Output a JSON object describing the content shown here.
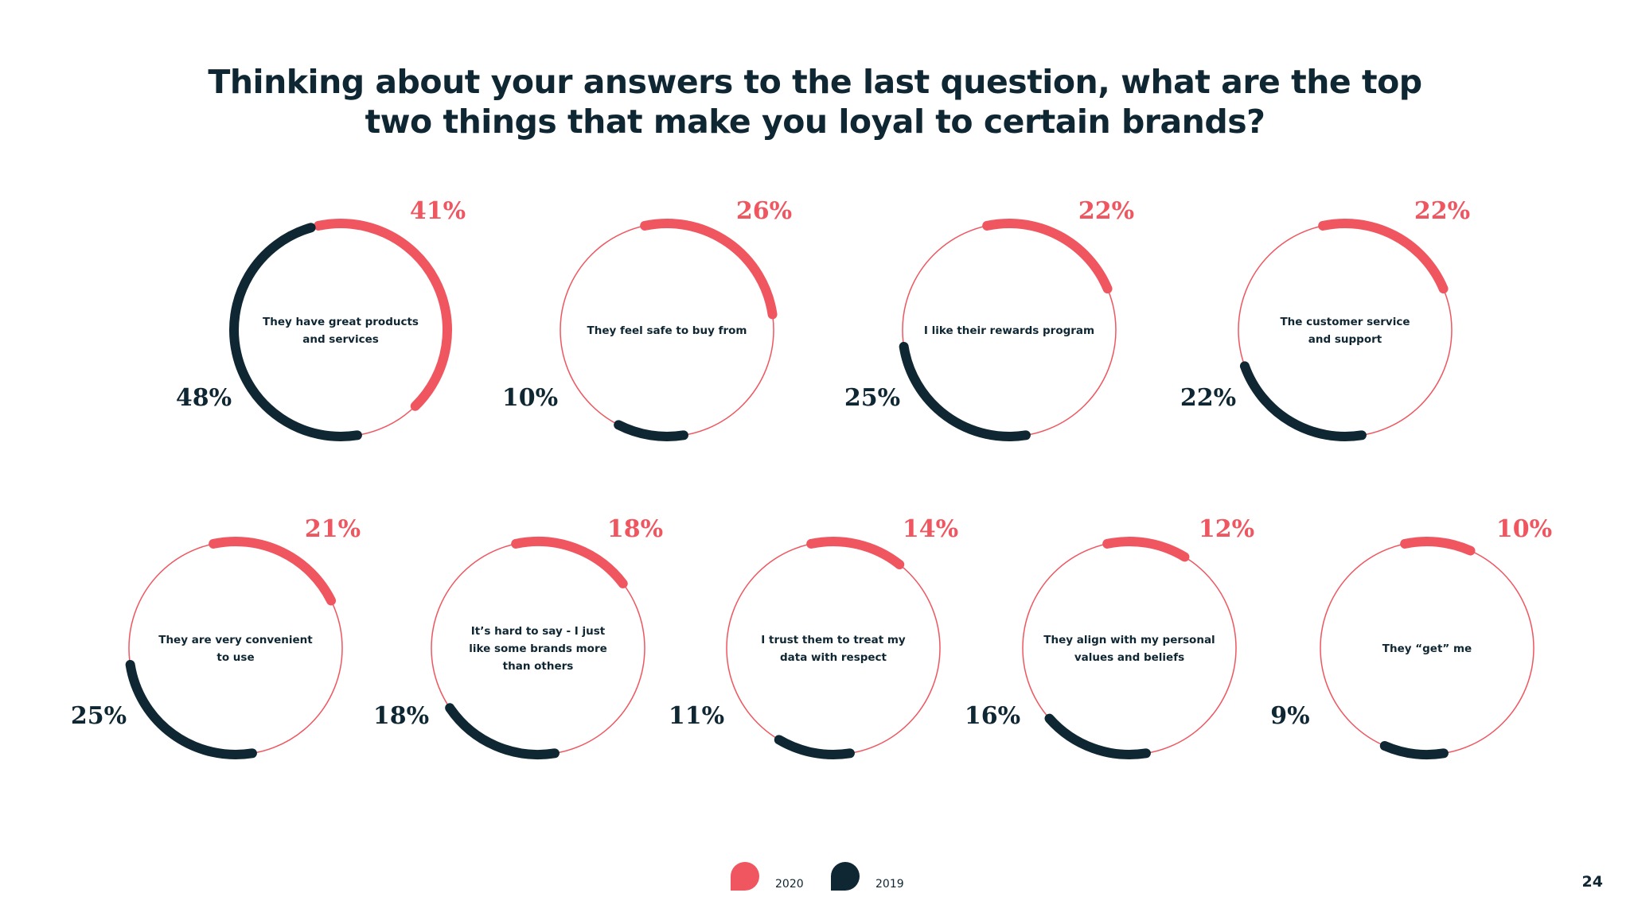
{
  "title": {
    "line1": "Thinking about your answers to the last question, what are the top",
    "line2": "two things that make you loyal to certain brands?"
  },
  "legend": [
    {
      "label": "2020",
      "color": "#ef5660"
    },
    {
      "label": "2019",
      "color": "#0f2633"
    }
  ],
  "page_number": "24",
  "chart_data": {
    "type": "donut-comparison",
    "unit": "%",
    "series": [
      {
        "name": "2020",
        "color": "#ef5660"
      },
      {
        "name": "2019",
        "color": "#0f2633"
      }
    ],
    "items": [
      {
        "label": [
          "They have great products",
          "and services"
        ],
        "v2020": 41,
        "v2019": 48
      },
      {
        "label": [
          "They feel safe to buy from"
        ],
        "v2020": 26,
        "v2019": 10
      },
      {
        "label": [
          "I like their rewards program"
        ],
        "v2020": 22,
        "v2019": 25
      },
      {
        "label": [
          "The customer service",
          "and support"
        ],
        "v2020": 22,
        "v2019": 22
      },
      {
        "label": [
          "They are very convenient",
          "to use"
        ],
        "v2020": 21,
        "v2019": 25
      },
      {
        "label": [
          "It’s hard to say - I just",
          "like some brands more",
          "than others"
        ],
        "v2020": 18,
        "v2019": 18
      },
      {
        "label": [
          "I trust them to treat my",
          "data with respect"
        ],
        "v2020": 14,
        "v2019": 11
      },
      {
        "label": [
          "They align with my personal",
          "values and beliefs"
        ],
        "v2020": 12,
        "v2019": 16
      },
      {
        "label": [
          "They “get” me"
        ],
        "v2020": 10,
        "v2019": 9
      }
    ]
  }
}
